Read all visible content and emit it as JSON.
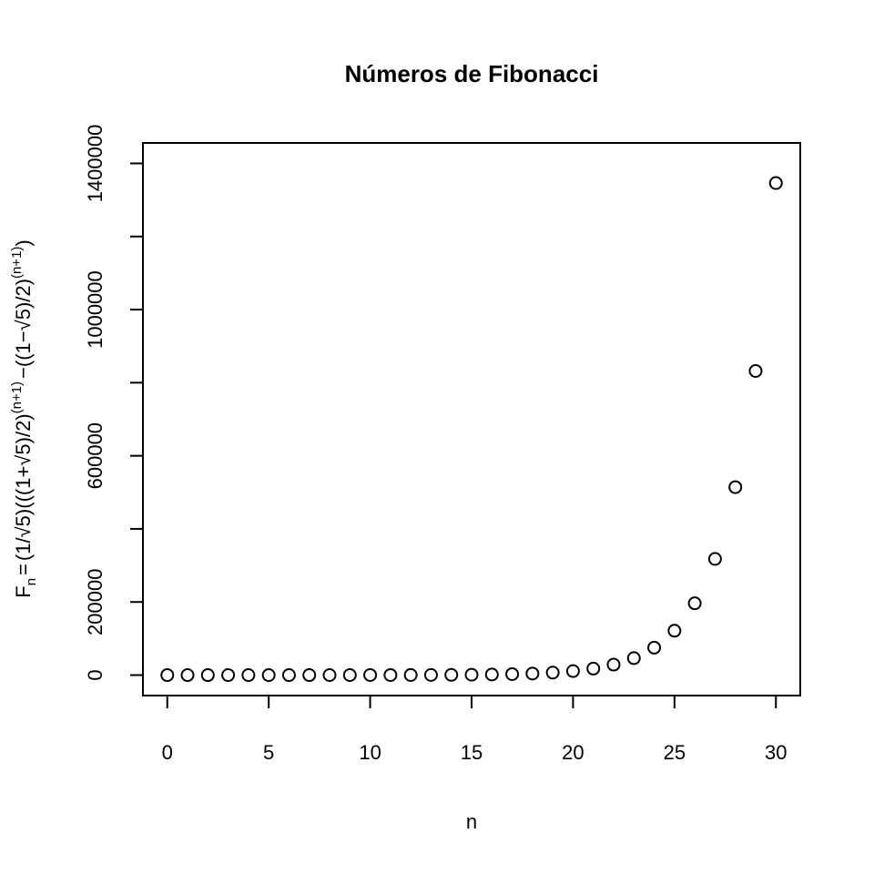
{
  "chart_data": {
    "type": "scatter",
    "title": "Números de Fibonacci",
    "xlabel": "n",
    "ylabel": "F_n = (1/√5)(((1+√5)/2)^(n+1) − ((1−√5)/2)^(n+1))",
    "xlim": [
      -1.2,
      31.2
    ],
    "ylim": [
      -56000,
      1456000
    ],
    "x_ticks": [
      0,
      5,
      10,
      15,
      20,
      25,
      30
    ],
    "x_tick_labels": [
      "0",
      "5",
      "10",
      "15",
      "20",
      "25",
      "30"
    ],
    "y_ticks": [
      0,
      200000,
      400000,
      600000,
      800000,
      1000000,
      1200000,
      1400000
    ],
    "y_tick_labels": [
      "0",
      "200000",
      "",
      "600000",
      "",
      "1000000",
      "",
      "1400000"
    ],
    "marker": "open-circle",
    "grid": false,
    "x": [
      0,
      1,
      2,
      3,
      4,
      5,
      6,
      7,
      8,
      9,
      10,
      11,
      12,
      13,
      14,
      15,
      16,
      17,
      18,
      19,
      20,
      21,
      22,
      23,
      24,
      25,
      26,
      27,
      28,
      29,
      30
    ],
    "y": [
      1,
      1,
      2,
      3,
      5,
      8,
      13,
      21,
      34,
      55,
      89,
      144,
      233,
      377,
      610,
      987,
      1597,
      2584,
      4181,
      6765,
      10946,
      17711,
      28657,
      46368,
      75025,
      121393,
      196418,
      317811,
      514229,
      832040,
      1346269
    ]
  },
  "ylabel_parts": {
    "F": "F",
    "n": "n",
    "eq": "=",
    "p1": "(1/",
    "sqrt1": "√5",
    "p2": ")(((1+",
    "sqrt2": "√5",
    "p3": ")/2)",
    "exp1": "(n+1)",
    "minus": "−",
    "p4": "((1−",
    "sqrt3": "√5",
    "p5": ")/2)",
    "exp2": "(n+1)",
    "p6": ")"
  }
}
